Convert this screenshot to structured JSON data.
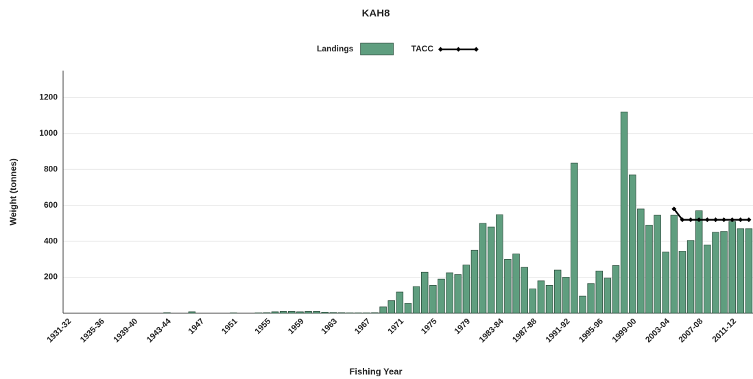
{
  "chart_data": {
    "type": "bar",
    "title": "KAH8",
    "x_label": "Fishing Year",
    "y_label": "Weight (tonnes)",
    "categories": [
      "1931-32",
      null,
      null,
      null,
      "1935-36",
      null,
      null,
      null,
      "1939-40",
      null,
      null,
      null,
      "1943-44",
      null,
      null,
      null,
      "1947",
      null,
      null,
      null,
      "1951",
      null,
      null,
      null,
      "1955",
      null,
      null,
      null,
      "1959",
      null,
      null,
      null,
      "1963",
      null,
      null,
      null,
      "1967",
      null,
      null,
      null,
      "1971",
      null,
      null,
      null,
      "1975",
      null,
      null,
      null,
      "1979",
      null,
      null,
      null,
      "1983-84",
      null,
      null,
      null,
      "1987-88",
      null,
      null,
      null,
      "1991-92",
      null,
      null,
      null,
      "1995-96",
      null,
      null,
      null,
      "1999-00",
      null,
      null,
      null,
      "2003-04",
      null,
      null,
      null,
      "2007-08",
      null,
      null,
      null,
      "2011-12",
      null,
      null
    ],
    "series": [
      {
        "name": "Landings",
        "color": "#5f9e7f",
        "type": "bar",
        "values": [
          0,
          0,
          0,
          0,
          0,
          0,
          0,
          0,
          0,
          0,
          0,
          0,
          3,
          0,
          0,
          8,
          0,
          0,
          0,
          0,
          2,
          0,
          0,
          2,
          3,
          8,
          10,
          10,
          8,
          10,
          10,
          6,
          4,
          3,
          2,
          2,
          2,
          3,
          35,
          70,
          118,
          55,
          148,
          228,
          155,
          190,
          225,
          215,
          268,
          350,
          500,
          480,
          548,
          300,
          330,
          255,
          135,
          180,
          155,
          240,
          200,
          835,
          95,
          165,
          235,
          195,
          265,
          1120,
          770,
          580,
          490,
          545,
          340,
          545,
          345,
          405,
          570,
          380,
          450,
          455,
          510,
          470,
          470
        ]
      },
      {
        "name": "TACC",
        "color": "#000000",
        "type": "line",
        "values": [
          null,
          null,
          null,
          null,
          null,
          null,
          null,
          null,
          null,
          null,
          null,
          null,
          null,
          null,
          null,
          null,
          null,
          null,
          null,
          null,
          null,
          null,
          null,
          null,
          null,
          null,
          null,
          null,
          null,
          null,
          null,
          null,
          null,
          null,
          null,
          null,
          null,
          null,
          null,
          null,
          null,
          null,
          null,
          null,
          null,
          null,
          null,
          null,
          null,
          null,
          null,
          null,
          null,
          null,
          null,
          null,
          null,
          null,
          null,
          null,
          null,
          null,
          null,
          null,
          null,
          null,
          null,
          null,
          null,
          null,
          null,
          null,
          null,
          580,
          520,
          520,
          520,
          520,
          520,
          520,
          520,
          520,
          520
        ]
      }
    ],
    "ylim": [
      0,
      1350
    ],
    "yticks": [
      200,
      400,
      600,
      800,
      1000,
      1200
    ],
    "grid": true
  }
}
